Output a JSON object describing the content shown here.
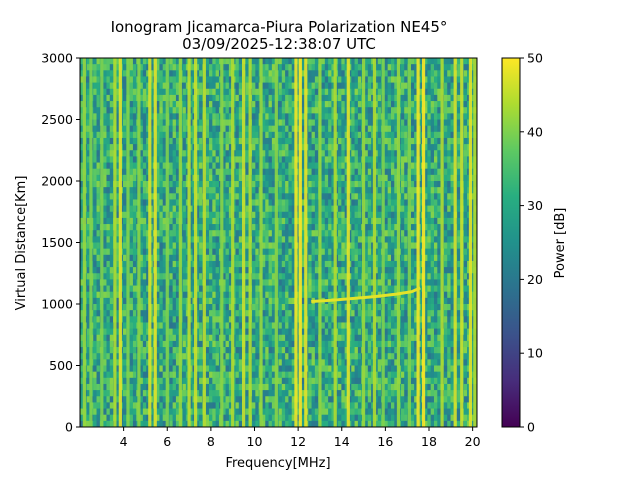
{
  "chart_data": {
    "type": "heatmap",
    "title": "Ionogram Jicamarca-Piura Polarization NE45°",
    "subtitle": "03/09/2025-12:38:07 UTC",
    "xlabel": "Frequency[MHz]",
    "ylabel": "Virtual Distance[Km]",
    "xlim": [
      2.0,
      20.2
    ],
    "ylim": [
      0,
      3000
    ],
    "xticks": [
      4,
      6,
      8,
      10,
      12,
      14,
      16,
      18,
      20
    ],
    "yticks": [
      0,
      500,
      1000,
      1500,
      2000,
      2500,
      3000
    ],
    "colorbar": {
      "label": "Power [dB]",
      "range": [
        0,
        50
      ],
      "ticks": [
        0,
        10,
        20,
        30,
        40,
        50
      ],
      "colormap": "viridis"
    },
    "background_level_db": 30,
    "interference_lines": [
      {
        "freq_mhz": 2.2,
        "power_db": 42
      },
      {
        "freq_mhz": 2.5,
        "power_db": 40
      },
      {
        "freq_mhz": 3.0,
        "power_db": 40
      },
      {
        "freq_mhz": 3.6,
        "power_db": 44
      },
      {
        "freq_mhz": 3.85,
        "power_db": 48
      },
      {
        "freq_mhz": 4.2,
        "power_db": 40
      },
      {
        "freq_mhz": 4.7,
        "power_db": 41
      },
      {
        "freq_mhz": 5.2,
        "power_db": 47
      },
      {
        "freq_mhz": 5.45,
        "power_db": 48
      },
      {
        "freq_mhz": 6.0,
        "power_db": 40
      },
      {
        "freq_mhz": 6.6,
        "power_db": 42
      },
      {
        "freq_mhz": 7.0,
        "power_db": 45
      },
      {
        "freq_mhz": 7.3,
        "power_db": 46
      },
      {
        "freq_mhz": 7.7,
        "power_db": 45
      },
      {
        "freq_mhz": 8.5,
        "power_db": 41
      },
      {
        "freq_mhz": 9.0,
        "power_db": 44
      },
      {
        "freq_mhz": 9.5,
        "power_db": 46
      },
      {
        "freq_mhz": 9.8,
        "power_db": 44
      },
      {
        "freq_mhz": 10.3,
        "power_db": 42
      },
      {
        "freq_mhz": 11.0,
        "power_db": 41
      },
      {
        "freq_mhz": 11.9,
        "power_db": 49
      },
      {
        "freq_mhz": 12.1,
        "power_db": 50
      },
      {
        "freq_mhz": 12.35,
        "power_db": 48
      },
      {
        "freq_mhz": 13.0,
        "power_db": 42
      },
      {
        "freq_mhz": 13.7,
        "power_db": 44
      },
      {
        "freq_mhz": 14.3,
        "power_db": 48
      },
      {
        "freq_mhz": 15.0,
        "power_db": 42
      },
      {
        "freq_mhz": 15.5,
        "power_db": 44
      },
      {
        "freq_mhz": 15.9,
        "power_db": 40
      },
      {
        "freq_mhz": 16.6,
        "power_db": 42
      },
      {
        "freq_mhz": 17.1,
        "power_db": 40
      },
      {
        "freq_mhz": 17.5,
        "power_db": 49
      },
      {
        "freq_mhz": 17.75,
        "power_db": 50
      },
      {
        "freq_mhz": 18.6,
        "power_db": 44
      },
      {
        "freq_mhz": 19.2,
        "power_db": 47
      },
      {
        "freq_mhz": 19.5,
        "power_db": 46
      },
      {
        "freq_mhz": 19.9,
        "power_db": 48
      },
      {
        "freq_mhz": 20.1,
        "power_db": 44
      }
    ],
    "echo_trace": {
      "power_db": 48,
      "points": [
        {
          "freq_mhz": 12.6,
          "distance_km": 1020
        },
        {
          "freq_mhz": 13.5,
          "distance_km": 1030
        },
        {
          "freq_mhz": 14.5,
          "distance_km": 1045
        },
        {
          "freq_mhz": 15.5,
          "distance_km": 1060
        },
        {
          "freq_mhz": 16.5,
          "distance_km": 1080
        },
        {
          "freq_mhz": 17.2,
          "distance_km": 1100
        },
        {
          "freq_mhz": 17.6,
          "distance_km": 1130
        }
      ]
    }
  }
}
